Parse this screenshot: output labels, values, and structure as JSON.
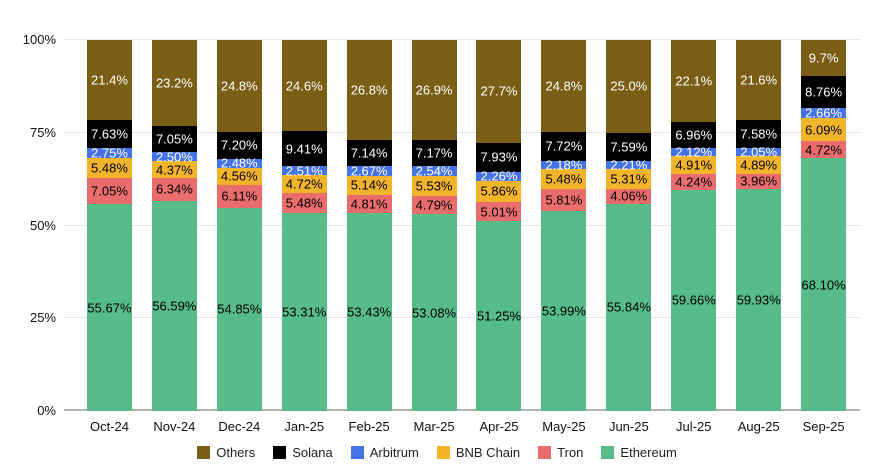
{
  "chart_data": {
    "type": "bar",
    "stacked": true,
    "percent_stacked": true,
    "title": "",
    "xlabel": "",
    "ylabel": "",
    "ylim": [
      0,
      100
    ],
    "grid": true,
    "legend_position": "bottom",
    "y_ticks": [
      {
        "value": 0,
        "label": "0%"
      },
      {
        "value": 25,
        "label": "25%"
      },
      {
        "value": 50,
        "label": "50%"
      },
      {
        "value": 75,
        "label": "75%"
      },
      {
        "value": 100,
        "label": "100%"
      }
    ],
    "categories": [
      "Oct-24",
      "Nov-24",
      "Dec-24",
      "Jan-25",
      "Feb-25",
      "Mar-25",
      "Apr-25",
      "May-25",
      "Jun-25",
      "Jul-25",
      "Aug-25",
      "Sep-25"
    ],
    "series": [
      {
        "name": "Others",
        "color": "#7a5e16",
        "label_color": "#ffffff",
        "values": [
          21.4,
          23.2,
          24.8,
          24.6,
          26.8,
          26.9,
          27.7,
          24.8,
          25.0,
          22.1,
          21.6,
          9.7
        ],
        "labels": [
          "21.4%",
          "23.2%",
          "24.8%",
          "24.6%",
          "26.8%",
          "26.9%",
          "27.7%",
          "24.8%",
          "25.0%",
          "22.1%",
          "21.6%",
          "9.7%"
        ]
      },
      {
        "name": "Solana",
        "color": "#000000",
        "label_color": "#ffffff",
        "values": [
          7.63,
          7.05,
          7.2,
          9.41,
          7.14,
          7.17,
          7.93,
          7.72,
          7.59,
          6.96,
          7.58,
          8.76
        ],
        "labels": [
          "7.63%",
          "7.05%",
          "7.20%",
          "9.41%",
          "7.14%",
          "7.17%",
          "7.93%",
          "7.72%",
          "7.59%",
          "6.96%",
          "7.58%",
          "8.76%"
        ]
      },
      {
        "name": "Arbitrum",
        "color": "#4672e8",
        "label_color": "#ffffff",
        "values": [
          2.75,
          2.5,
          2.48,
          2.51,
          2.67,
          2.54,
          2.26,
          2.18,
          2.21,
          2.12,
          2.05,
          2.66
        ],
        "labels": [
          "2.75%",
          "2.50%",
          "2.48%",
          "2.51%",
          "2.67%",
          "2.54%",
          "2.26%",
          "2.18%",
          "2.21%",
          "2.12%",
          "2.05%",
          "2.66%"
        ]
      },
      {
        "name": "BNB Chain",
        "color": "#f2b42b",
        "label_color": "#000000",
        "values": [
          5.48,
          4.37,
          4.56,
          4.72,
          5.14,
          5.53,
          5.86,
          5.48,
          5.31,
          4.91,
          4.89,
          6.09
        ],
        "labels": [
          "5.48%",
          "4.37%",
          "4.56%",
          "4.72%",
          "5.14%",
          "5.53%",
          "5.86%",
          "5.48%",
          "5.31%",
          "4.91%",
          "4.89%",
          "6.09%"
        ]
      },
      {
        "name": "Tron",
        "color": "#e96d6d",
        "label_color": "#000000",
        "values": [
          7.05,
          6.34,
          6.11,
          5.48,
          4.81,
          4.79,
          5.01,
          5.81,
          4.06,
          4.24,
          3.96,
          4.72
        ],
        "labels": [
          "7.05%",
          "6.34%",
          "6.11%",
          "5.48%",
          "4.81%",
          "4.79%",
          "5.01%",
          "5.81%",
          "4.06%",
          "4.24%",
          "3.96%",
          "4.72%"
        ]
      },
      {
        "name": "Ethereum",
        "color": "#57bb8a",
        "label_color": "#000000",
        "values": [
          55.67,
          56.59,
          54.85,
          53.31,
          53.43,
          53.08,
          51.25,
          53.99,
          55.84,
          59.66,
          59.93,
          68.1
        ],
        "labels": [
          "55.67%",
          "56.59%",
          "54.85%",
          "53.31%",
          "53.43%",
          "53.08%",
          "51.25%",
          "53.99%",
          "55.84%",
          "59.66%",
          "59.93%",
          "68.10%"
        ]
      }
    ],
    "colors": {
      "grid": "#e6e6e6",
      "axis": "#b3b3b3",
      "tick_text": "#111111",
      "legend_text": "#212121",
      "background": "#ffffff"
    }
  }
}
